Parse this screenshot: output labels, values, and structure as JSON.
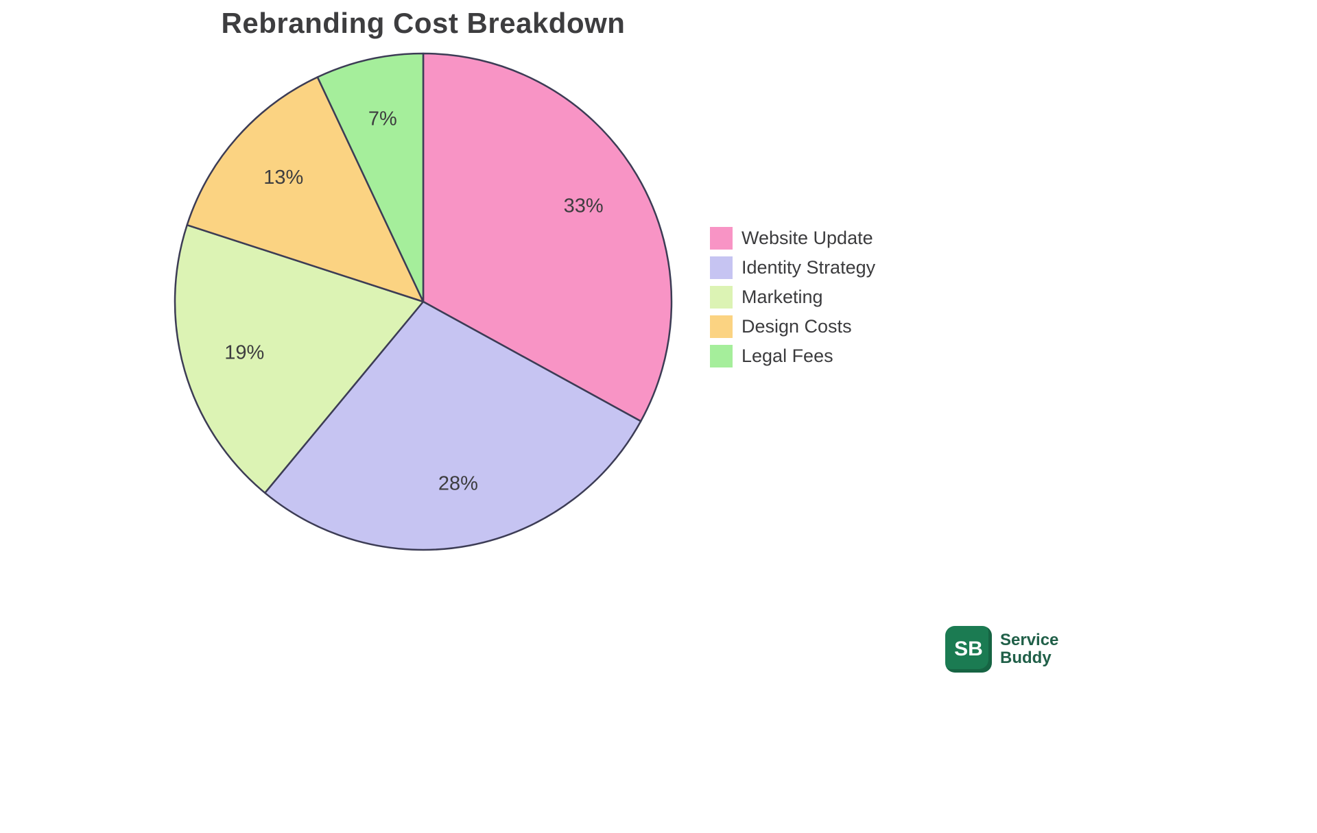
{
  "title": "Rebranding Cost Breakdown",
  "chart_data": {
    "type": "pie",
    "title": "Rebranding Cost Breakdown",
    "labels": [
      "Website Update",
      "Identity Strategy",
      "Marketing",
      "Design Costs",
      "Legal Fees"
    ],
    "values": [
      33,
      28,
      19,
      13,
      7
    ],
    "percent_labels": [
      "33%",
      "28%",
      "19%",
      "13%",
      "7%"
    ],
    "colors": [
      "#F894C5",
      "#C6C4F2",
      "#DCF3B4",
      "#FBD382",
      "#A5EE9B"
    ],
    "stroke_color": "#3C3C55",
    "start_angle_deg": -90,
    "direction": "clockwise",
    "legend_position": "right",
    "label_text_color": "#3d3d3f"
  },
  "logo": {
    "badge_text": "SB",
    "name_line1": "Service",
    "name_line2": "Buddy",
    "badge_color": "#1B7B52",
    "text_color": "#205F48"
  }
}
